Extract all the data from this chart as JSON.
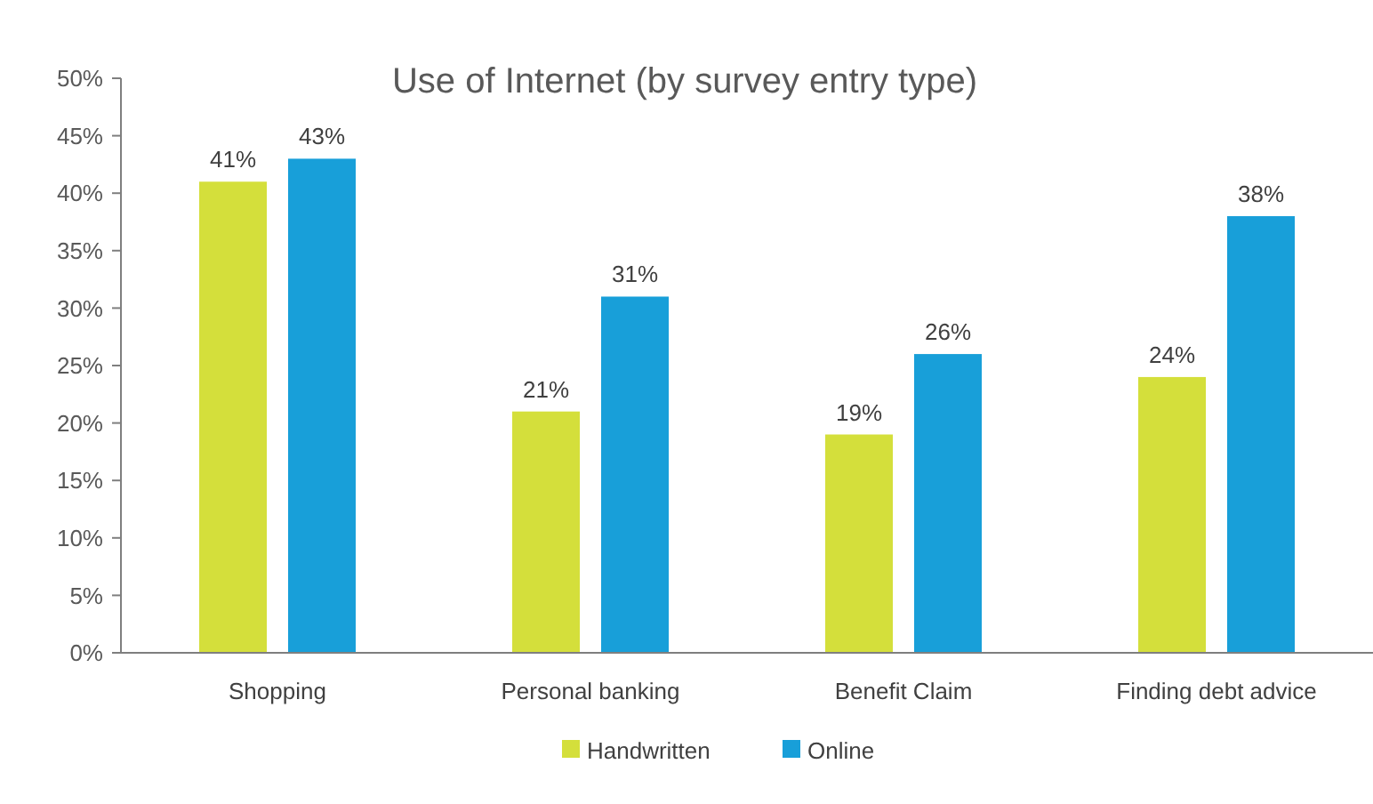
{
  "chart_data": {
    "type": "bar",
    "title": "Use of Internet (by survey entry type)",
    "categories": [
      "Shopping",
      "Personal banking",
      "Benefit Claim",
      "Finding debt advice"
    ],
    "series": [
      {
        "name": "Handwritten",
        "color": "#d4df3b",
        "values": [
          41,
          21,
          19,
          24
        ],
        "value_labels": [
          "41%",
          "21%",
          "19%",
          "24%"
        ]
      },
      {
        "name": "Online",
        "color": "#189fd9",
        "values": [
          43,
          31,
          26,
          38
        ],
        "value_labels": [
          "43%",
          "31%",
          "26%",
          "38%"
        ]
      }
    ],
    "ylim": [
      0,
      50
    ],
    "yticks": [
      {
        "value": 0,
        "label": "0%"
      },
      {
        "value": 5,
        "label": "5%"
      },
      {
        "value": 10,
        "label": "10%"
      },
      {
        "value": 15,
        "label": "15%"
      },
      {
        "value": 20,
        "label": "20%"
      },
      {
        "value": 25,
        "label": "25%"
      },
      {
        "value": 30,
        "label": "30%"
      },
      {
        "value": 35,
        "label": "35%"
      },
      {
        "value": 40,
        "label": "40%"
      },
      {
        "value": 45,
        "label": "45%"
      },
      {
        "value": 50,
        "label": "50%"
      }
    ],
    "legend": "bottom",
    "grid": false
  }
}
